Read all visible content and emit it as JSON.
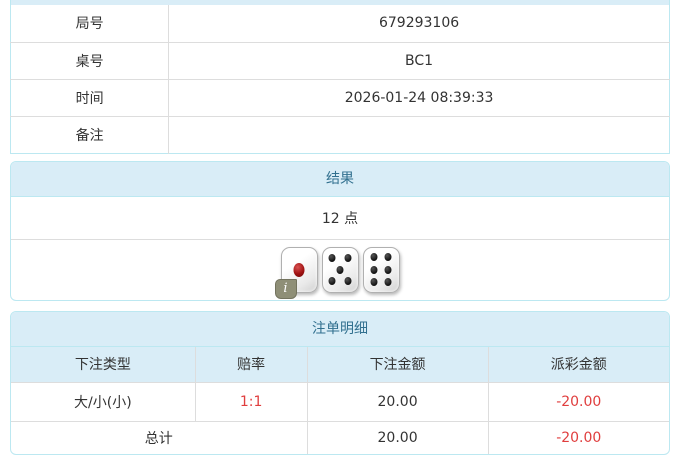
{
  "info": {
    "rows": [
      {
        "label": "局号",
        "value": "679293106"
      },
      {
        "label": "桌号",
        "value": "BC1"
      },
      {
        "label": "时间",
        "value": "2026-01-24 08:39:33"
      },
      {
        "label": "备注",
        "value": ""
      }
    ]
  },
  "result": {
    "title": "结果",
    "points": "12 点",
    "dice": [
      1,
      5,
      6
    ],
    "info_badge": "i"
  },
  "bets": {
    "title": "注单明细",
    "columns": [
      "下注类型",
      "赔率",
      "下注金额",
      "派彩金额"
    ],
    "rows": [
      {
        "type": "大/小(小)",
        "odds": "1:1",
        "bet": "20.00",
        "payout": "-20.00"
      }
    ],
    "total": {
      "label": "总计",
      "bet": "20.00",
      "payout": "-20.00"
    }
  },
  "colors": {
    "header_bg": "#d9edf7",
    "header_text": "#31708f",
    "border_outer": "#bce8f1",
    "border_inner": "#dddddd",
    "text": "#333333",
    "negative": "#e03e3e"
  }
}
